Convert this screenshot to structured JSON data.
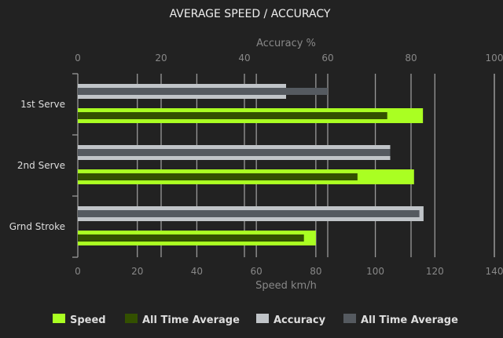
{
  "chart_data": {
    "type": "bar",
    "orientation": "horizontal",
    "title": "AVERAGE SPEED / ACCURACY",
    "categories": [
      "1st Serve",
      "2nd Serve",
      "Grnd Stroke"
    ],
    "x_bottom": {
      "label": "Speed km/h",
      "range": [
        0,
        140
      ],
      "ticks": [
        0,
        20,
        40,
        60,
        80,
        100,
        120,
        140
      ]
    },
    "x_top": {
      "label": "Accuracy %",
      "range": [
        0,
        100
      ],
      "ticks": [
        0,
        20,
        40,
        60,
        80,
        100
      ]
    },
    "grid": true,
    "legend_position": "bottom",
    "series": [
      {
        "name": "Speed",
        "axis": "speed",
        "color": "#aaff22",
        "values": [
          116,
          113,
          80
        ]
      },
      {
        "name": "All Time Average",
        "axis": "speed",
        "color": "#335000",
        "values": [
          104,
          94,
          76
        ]
      },
      {
        "name": "Accuracy",
        "axis": "accuracy",
        "color": "#c0c4c8",
        "values": [
          50,
          75,
          83
        ]
      },
      {
        "name": "All Time Average",
        "axis": "accuracy",
        "color": "#555a60",
        "values": [
          60,
          75,
          82
        ]
      }
    ]
  }
}
